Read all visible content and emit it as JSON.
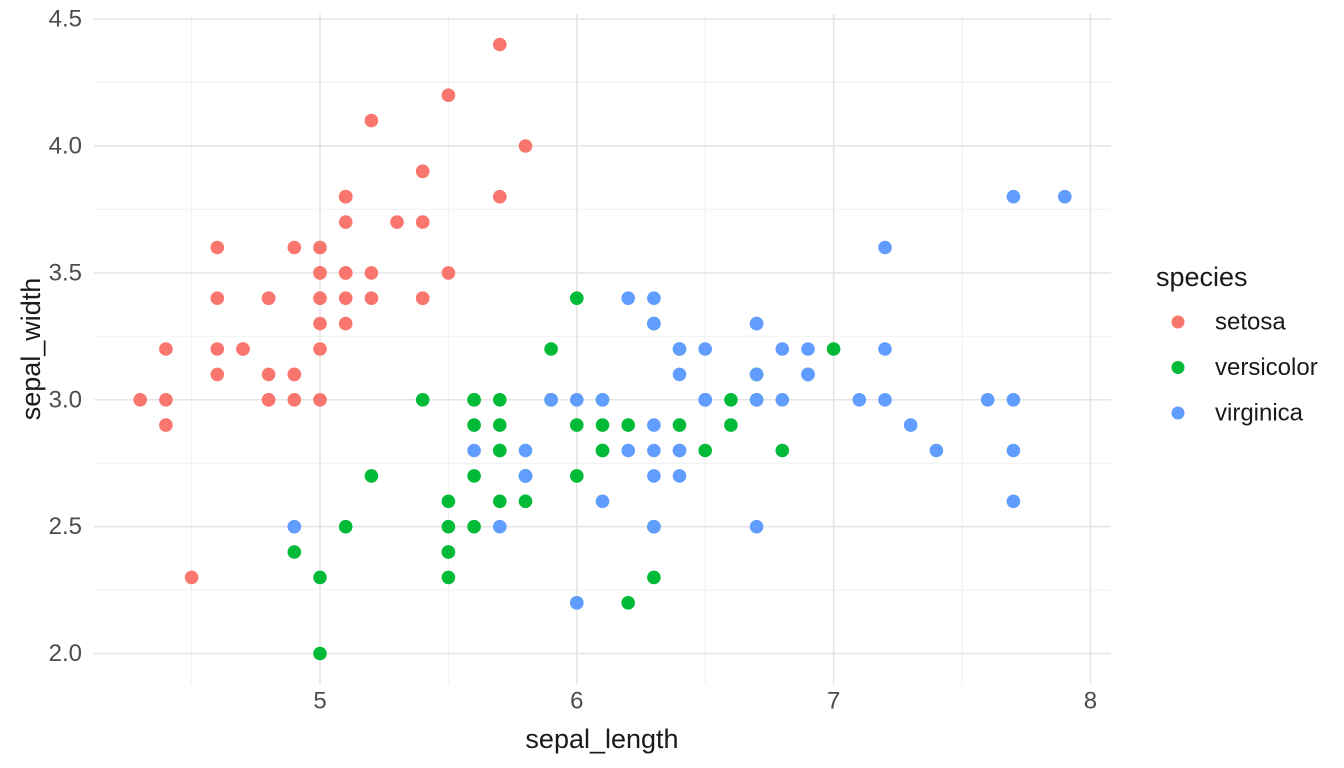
{
  "chart_data": {
    "type": "scatter",
    "title": "",
    "xlabel": "sepal_length",
    "ylabel": "sepal_width",
    "legend_title": "species",
    "legend_position": "right",
    "grid": true,
    "xlim": [
      4.12,
      8.08
    ],
    "ylim": [
      1.88,
      4.52
    ],
    "x_ticks": {
      "values": [
        5,
        6,
        7,
        8
      ],
      "labels": [
        "5",
        "6",
        "7",
        "8"
      ]
    },
    "y_ticks": {
      "values": [
        2.0,
        2.5,
        3.0,
        3.5,
        4.0,
        4.5
      ],
      "labels": [
        "2.0",
        "2.5",
        "3.0",
        "3.5",
        "4.0",
        "4.5"
      ]
    },
    "x_minor_ticks": [
      4.5,
      5.5,
      6.5,
      7.5
    ],
    "y_minor_ticks": [
      2.25,
      2.75,
      3.25,
      3.75,
      4.25
    ],
    "series": [
      {
        "name": "setosa",
        "color": "#F8766D",
        "points": [
          [
            5.1,
            3.5
          ],
          [
            4.9,
            3.0
          ],
          [
            4.7,
            3.2
          ],
          [
            4.6,
            3.1
          ],
          [
            5.0,
            3.6
          ],
          [
            5.4,
            3.9
          ],
          [
            4.6,
            3.4
          ],
          [
            5.0,
            3.4
          ],
          [
            4.4,
            2.9
          ],
          [
            4.9,
            3.1
          ],
          [
            5.4,
            3.7
          ],
          [
            4.8,
            3.4
          ],
          [
            4.8,
            3.0
          ],
          [
            4.3,
            3.0
          ],
          [
            5.8,
            4.0
          ],
          [
            5.7,
            4.4
          ],
          [
            5.4,
            3.9
          ],
          [
            5.1,
            3.5
          ],
          [
            5.7,
            3.8
          ],
          [
            5.1,
            3.8
          ],
          [
            5.4,
            3.4
          ],
          [
            5.1,
            3.7
          ],
          [
            4.6,
            3.6
          ],
          [
            5.1,
            3.3
          ],
          [
            4.8,
            3.4
          ],
          [
            5.0,
            3.0
          ],
          [
            5.0,
            3.4
          ],
          [
            5.2,
            3.5
          ],
          [
            5.2,
            3.4
          ],
          [
            4.7,
            3.2
          ],
          [
            4.8,
            3.1
          ],
          [
            5.4,
            3.4
          ],
          [
            5.2,
            4.1
          ],
          [
            5.5,
            4.2
          ],
          [
            4.9,
            3.1
          ],
          [
            5.0,
            3.2
          ],
          [
            5.5,
            3.5
          ],
          [
            4.9,
            3.6
          ],
          [
            4.4,
            3.0
          ],
          [
            5.1,
            3.4
          ],
          [
            5.0,
            3.5
          ],
          [
            4.5,
            2.3
          ],
          [
            4.4,
            3.2
          ],
          [
            5.0,
            3.5
          ],
          [
            5.1,
            3.8
          ],
          [
            4.8,
            3.0
          ],
          [
            5.1,
            3.8
          ],
          [
            4.6,
            3.2
          ],
          [
            5.3,
            3.7
          ],
          [
            5.0,
            3.3
          ]
        ]
      },
      {
        "name": "versicolor",
        "color": "#00BA38",
        "points": [
          [
            7.0,
            3.2
          ],
          [
            6.4,
            3.2
          ],
          [
            6.9,
            3.1
          ],
          [
            5.5,
            2.3
          ],
          [
            6.5,
            2.8
          ],
          [
            5.7,
            2.8
          ],
          [
            6.3,
            3.3
          ],
          [
            4.9,
            2.4
          ],
          [
            6.6,
            2.9
          ],
          [
            5.2,
            2.7
          ],
          [
            5.0,
            2.0
          ],
          [
            5.9,
            3.0
          ],
          [
            6.0,
            2.2
          ],
          [
            6.1,
            2.9
          ],
          [
            5.6,
            2.9
          ],
          [
            6.7,
            3.1
          ],
          [
            5.6,
            3.0
          ],
          [
            5.8,
            2.7
          ],
          [
            6.2,
            2.2
          ],
          [
            5.6,
            2.5
          ],
          [
            5.9,
            3.2
          ],
          [
            6.1,
            2.8
          ],
          [
            6.3,
            2.5
          ],
          [
            6.1,
            2.8
          ],
          [
            6.4,
            2.9
          ],
          [
            6.6,
            3.0
          ],
          [
            6.8,
            2.8
          ],
          [
            6.7,
            3.0
          ],
          [
            6.0,
            2.9
          ],
          [
            5.7,
            2.6
          ],
          [
            5.5,
            2.4
          ],
          [
            5.5,
            2.4
          ],
          [
            5.8,
            2.7
          ],
          [
            6.0,
            2.7
          ],
          [
            5.4,
            3.0
          ],
          [
            6.0,
            3.4
          ],
          [
            6.7,
            3.1
          ],
          [
            6.3,
            2.3
          ],
          [
            5.6,
            3.0
          ],
          [
            5.5,
            2.5
          ],
          [
            5.5,
            2.6
          ],
          [
            6.1,
            3.0
          ],
          [
            5.8,
            2.6
          ],
          [
            5.0,
            2.3
          ],
          [
            5.6,
            2.7
          ],
          [
            5.7,
            3.0
          ],
          [
            5.7,
            2.9
          ],
          [
            6.2,
            2.9
          ],
          [
            5.1,
            2.5
          ],
          [
            5.7,
            2.8
          ]
        ]
      },
      {
        "name": "virginica",
        "color": "#619CFF",
        "points": [
          [
            6.3,
            3.3
          ],
          [
            5.8,
            2.7
          ],
          [
            7.1,
            3.0
          ],
          [
            6.3,
            2.9
          ],
          [
            6.5,
            3.0
          ],
          [
            7.6,
            3.0
          ],
          [
            4.9,
            2.5
          ],
          [
            7.3,
            2.9
          ],
          [
            6.7,
            2.5
          ],
          [
            7.2,
            3.6
          ],
          [
            6.5,
            3.2
          ],
          [
            6.4,
            2.7
          ],
          [
            6.8,
            3.0
          ],
          [
            5.7,
            2.5
          ],
          [
            5.8,
            2.8
          ],
          [
            6.4,
            3.2
          ],
          [
            6.5,
            3.0
          ],
          [
            7.7,
            3.8
          ],
          [
            7.7,
            2.6
          ],
          [
            6.0,
            2.2
          ],
          [
            6.9,
            3.2
          ],
          [
            5.6,
            2.8
          ],
          [
            7.7,
            2.8
          ],
          [
            6.3,
            2.7
          ],
          [
            6.7,
            3.3
          ],
          [
            7.2,
            3.2
          ],
          [
            6.2,
            2.8
          ],
          [
            6.1,
            3.0
          ],
          [
            6.4,
            2.8
          ],
          [
            7.2,
            3.0
          ],
          [
            7.4,
            2.8
          ],
          [
            7.9,
            3.8
          ],
          [
            6.4,
            2.8
          ],
          [
            6.3,
            2.8
          ],
          [
            6.1,
            2.6
          ],
          [
            7.7,
            3.0
          ],
          [
            6.3,
            3.4
          ],
          [
            6.4,
            3.1
          ],
          [
            6.0,
            3.0
          ],
          [
            6.9,
            3.1
          ],
          [
            6.7,
            3.1
          ],
          [
            6.9,
            3.1
          ],
          [
            5.8,
            2.7
          ],
          [
            6.8,
            3.2
          ],
          [
            6.7,
            3.3
          ],
          [
            6.7,
            3.0
          ],
          [
            6.3,
            2.5
          ],
          [
            6.5,
            3.0
          ],
          [
            6.2,
            3.4
          ],
          [
            5.9,
            3.0
          ]
        ]
      }
    ]
  },
  "style": {
    "background": "#FFFFFF",
    "grid_major_color": "#E5E5E5",
    "grid_minor_color": "#F0F0F0",
    "tick_label_color": "#4D4D4D",
    "axis_title_color": "#1A1A1A",
    "legend_text_color": "#1A1A1A"
  }
}
